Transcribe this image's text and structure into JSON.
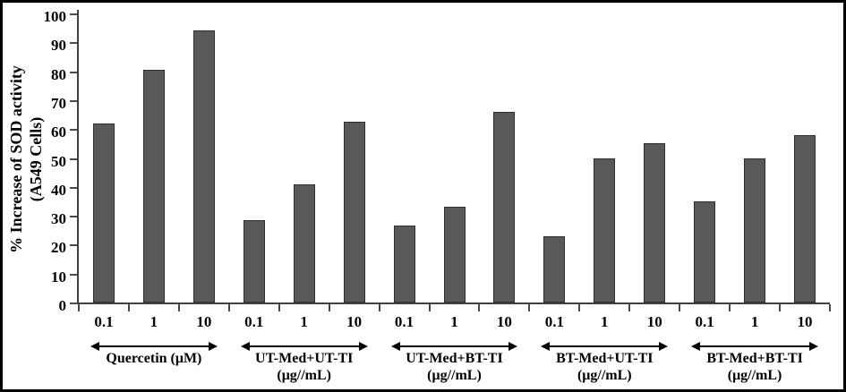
{
  "figure": {
    "background": "#ffffff",
    "border_color": "#000000",
    "bar_color": "#595959",
    "bar_border_color": "#2e2e2e",
    "axis_color": "#404040",
    "text_color": "#000000"
  },
  "chart_data": {
    "type": "bar",
    "ylabel_lines": [
      "% Increase of SOD activity",
      "(A549 Cells)"
    ],
    "ylim": [
      0,
      100
    ],
    "ytick_step": 10,
    "yticks": [
      0,
      10,
      20,
      30,
      40,
      50,
      60,
      70,
      80,
      90,
      100
    ],
    "grid": false,
    "legend_position": "none",
    "groups": [
      {
        "label_lines": [
          "Quercetin (μM)"
        ],
        "categories": [
          "0.1",
          "1",
          "10"
        ],
        "values": [
          62,
          80.5,
          94
        ]
      },
      {
        "label_lines": [
          "UT-Med+UT-TI",
          "(μg//mL)"
        ],
        "categories": [
          "0.1",
          "1",
          "10"
        ],
        "values": [
          28.5,
          41,
          62.5
        ]
      },
      {
        "label_lines": [
          "UT-Med+BT-TI",
          "(μg//mL)"
        ],
        "categories": [
          "0.1",
          "1",
          "10"
        ],
        "values": [
          26.5,
          33,
          66
        ]
      },
      {
        "label_lines": [
          "BT-Med+UT-TI",
          "(μg//mL)"
        ],
        "categories": [
          "0.1",
          "1",
          "10"
        ],
        "values": [
          23,
          50,
          55
        ]
      },
      {
        "label_lines": [
          "BT-Med+BT-TI",
          "(μg//mL)"
        ],
        "categories": [
          "0.1",
          "1",
          "10"
        ],
        "values": [
          35,
          50,
          58
        ]
      }
    ]
  }
}
